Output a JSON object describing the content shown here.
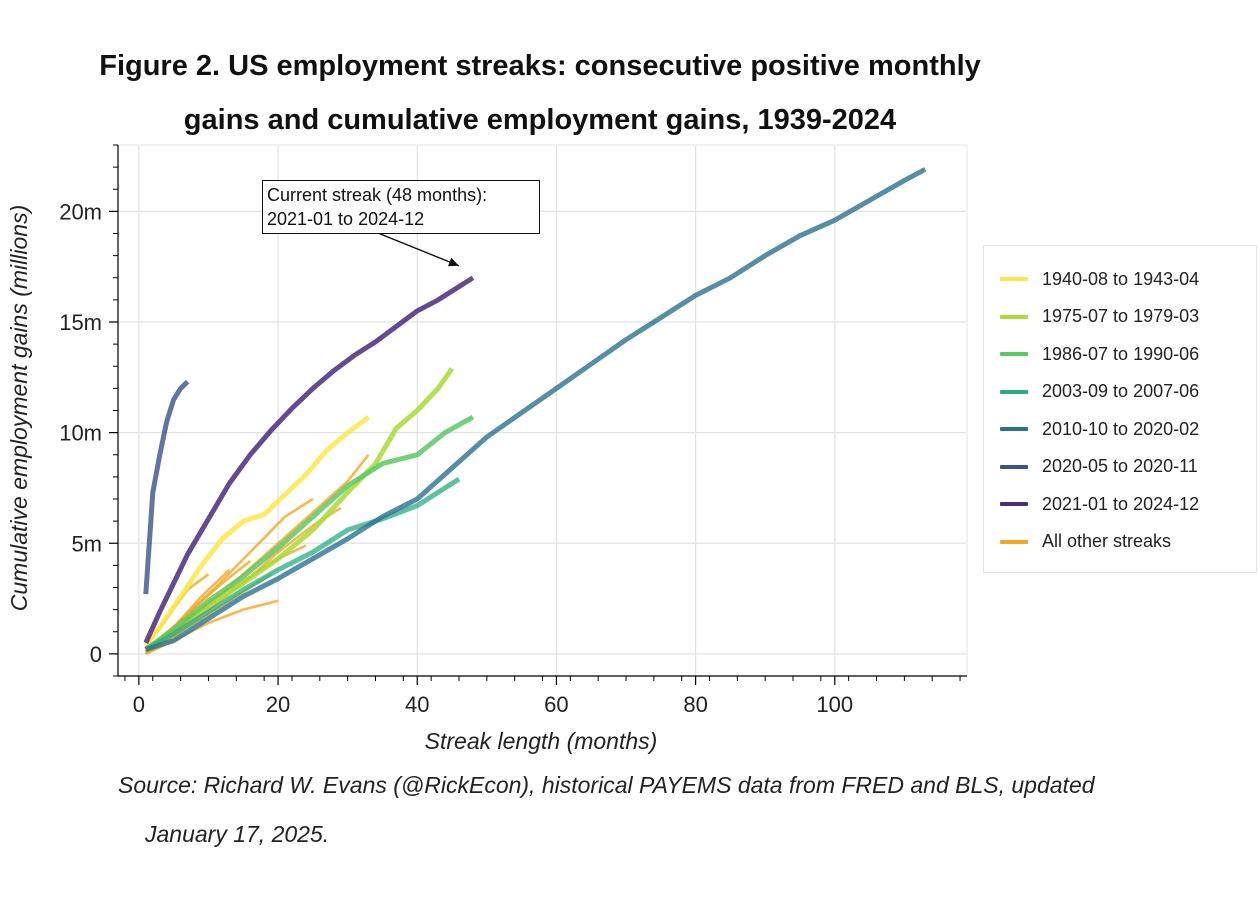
{
  "title_line1": "Figure 2. US employment streaks: consecutive positive monthly",
  "title_line2": "gains and cumulative employment gains, 1939-2024",
  "source_line1": "Source: Richard W. Evans (@RickEcon), historical PAYEMS data from FRED and BLS, updated",
  "source_line2": "January 17, 2025.",
  "annotation": {
    "line1": "Current streak (48 months):",
    "line2": "2021-01 to 2024-12"
  },
  "chart_data": {
    "type": "line",
    "title": "Figure 2. US employment streaks: consecutive positive monthly gains and cumulative employment gains, 1939-2024",
    "xlabel": "Streak length (months)",
    "ylabel": "Cumulative employment gains (millions)",
    "xlim": [
      -3,
      119
    ],
    "ylim": [
      -1,
      23
    ],
    "xticks": [
      0,
      20,
      40,
      60,
      80,
      100
    ],
    "xtick_labels": [
      "0",
      "20",
      "40",
      "60",
      "80",
      "100"
    ],
    "yticks": [
      0,
      5,
      10,
      15,
      20
    ],
    "ytick_labels": [
      "0",
      "5m",
      "10m",
      "15m",
      "20m"
    ],
    "grid": true,
    "legend_position": "right-outside",
    "series": [
      {
        "name": "1940-08 to 1943-04",
        "color": "#fde74c",
        "width": 5,
        "opacity": 0.85,
        "points": [
          [
            1,
            0.4
          ],
          [
            3,
            1.2
          ],
          [
            6,
            2.6
          ],
          [
            9,
            4.0
          ],
          [
            12,
            5.2
          ],
          [
            15,
            6.0
          ],
          [
            18,
            6.3
          ],
          [
            21,
            7.2
          ],
          [
            24,
            8.1
          ],
          [
            27,
            9.2
          ],
          [
            30,
            10.0
          ],
          [
            33,
            10.7
          ]
        ]
      },
      {
        "name": "1975-07 to 1979-03",
        "color": "#a8db34",
        "width": 5,
        "opacity": 0.85,
        "points": [
          [
            1,
            0.2
          ],
          [
            5,
            1.1
          ],
          [
            10,
            2.2
          ],
          [
            15,
            3.2
          ],
          [
            20,
            4.3
          ],
          [
            25,
            5.6
          ],
          [
            30,
            7.3
          ],
          [
            34,
            8.6
          ],
          [
            37,
            10.2
          ],
          [
            40,
            11.0
          ],
          [
            43,
            12.0
          ],
          [
            45,
            12.9
          ]
        ]
      },
      {
        "name": "1986-07 to 1990-06",
        "color": "#5cc863",
        "width": 5,
        "opacity": 0.85,
        "points": [
          [
            1,
            0.2
          ],
          [
            5,
            1.1
          ],
          [
            10,
            2.4
          ],
          [
            15,
            3.5
          ],
          [
            20,
            4.8
          ],
          [
            25,
            6.2
          ],
          [
            30,
            7.6
          ],
          [
            35,
            8.6
          ],
          [
            40,
            9.0
          ],
          [
            44,
            10.0
          ],
          [
            48,
            10.7
          ]
        ]
      },
      {
        "name": "2003-09 to 2007-06",
        "color": "#27ad81",
        "width": 5,
        "opacity": 0.75,
        "points": [
          [
            1,
            0.2
          ],
          [
            5,
            0.9
          ],
          [
            10,
            1.9
          ],
          [
            15,
            2.9
          ],
          [
            20,
            3.8
          ],
          [
            25,
            4.6
          ],
          [
            30,
            5.6
          ],
          [
            35,
            6.1
          ],
          [
            40,
            6.7
          ],
          [
            45,
            7.7
          ],
          [
            46,
            7.9
          ]
        ]
      },
      {
        "name": "2010-10 to 2020-02",
        "color": "#2c728e",
        "width": 5,
        "opacity": 0.8,
        "points": [
          [
            1,
            0.2
          ],
          [
            5,
            0.6
          ],
          [
            10,
            1.6
          ],
          [
            15,
            2.6
          ],
          [
            20,
            3.4
          ],
          [
            25,
            4.3
          ],
          [
            30,
            5.2
          ],
          [
            35,
            6.2
          ],
          [
            40,
            7.0
          ],
          [
            45,
            8.4
          ],
          [
            50,
            9.8
          ],
          [
            55,
            10.9
          ],
          [
            60,
            12.0
          ],
          [
            65,
            13.1
          ],
          [
            70,
            14.2
          ],
          [
            75,
            15.2
          ],
          [
            80,
            16.2
          ],
          [
            85,
            17.0
          ],
          [
            90,
            18.0
          ],
          [
            95,
            18.9
          ],
          [
            100,
            19.6
          ],
          [
            105,
            20.5
          ],
          [
            110,
            21.4
          ],
          [
            113,
            21.9
          ]
        ]
      },
      {
        "name": "2020-05 to 2020-11",
        "color": "#3b528b",
        "width": 5,
        "opacity": 0.8,
        "points": [
          [
            1,
            2.7
          ],
          [
            2,
            7.3
          ],
          [
            3,
            9.0
          ],
          [
            4,
            10.5
          ],
          [
            5,
            11.5
          ],
          [
            6,
            12.0
          ],
          [
            7,
            12.3
          ]
        ]
      },
      {
        "name": "2021-01 to 2024-12",
        "color": "#472d7b",
        "width": 5,
        "opacity": 0.85,
        "points": [
          [
            1,
            0.5
          ],
          [
            3,
            1.9
          ],
          [
            5,
            3.2
          ],
          [
            7,
            4.5
          ],
          [
            10,
            6.1
          ],
          [
            13,
            7.7
          ],
          [
            16,
            9.0
          ],
          [
            19,
            10.1
          ],
          [
            22,
            11.1
          ],
          [
            25,
            12.0
          ],
          [
            28,
            12.8
          ],
          [
            31,
            13.5
          ],
          [
            34,
            14.1
          ],
          [
            37,
            14.8
          ],
          [
            40,
            15.5
          ],
          [
            43,
            16.0
          ],
          [
            46,
            16.6
          ],
          [
            48,
            17.0
          ]
        ]
      },
      {
        "name": "All other streaks",
        "color": "#f5a623",
        "width": 2.6,
        "opacity": 0.8,
        "points": [
          [
            1,
            0.1
          ],
          [
            5,
            1.0
          ],
          [
            10,
            2.2
          ],
          [
            15,
            3.6
          ],
          [
            20,
            5.0
          ],
          [
            25,
            6.4
          ],
          [
            30,
            7.8
          ],
          [
            33,
            9.0
          ]
        ]
      },
      {
        "name": "",
        "color": "#f5a623",
        "width": 2.6,
        "opacity": 0.8,
        "points": [
          [
            1,
            0.2
          ],
          [
            6,
            1.5
          ],
          [
            11,
            3.0
          ],
          [
            16,
            4.6
          ],
          [
            21,
            6.2
          ],
          [
            25,
            7.0
          ]
        ]
      },
      {
        "name": "",
        "color": "#f5a623",
        "width": 2.6,
        "opacity": 0.8,
        "points": [
          [
            1,
            0.1
          ],
          [
            5,
            0.9
          ],
          [
            10,
            2.0
          ],
          [
            15,
            3.2
          ],
          [
            20,
            4.6
          ],
          [
            25,
            5.8
          ],
          [
            29,
            6.6
          ]
        ]
      },
      {
        "name": "",
        "color": "#f5a623",
        "width": 2.6,
        "opacity": 0.8,
        "points": [
          [
            1,
            0.0
          ],
          [
            4,
            0.9
          ],
          [
            8,
            2.1
          ],
          [
            12,
            3.2
          ],
          [
            16,
            4.2
          ]
        ]
      },
      {
        "name": "",
        "color": "#f5a623",
        "width": 2.6,
        "opacity": 0.8,
        "points": [
          [
            1,
            0.0
          ],
          [
            5,
            0.8
          ],
          [
            10,
            1.8
          ],
          [
            15,
            2.8
          ],
          [
            19,
            3.6
          ]
        ]
      },
      {
        "name": "",
        "color": "#f5a623",
        "width": 2.6,
        "opacity": 0.8,
        "points": [
          [
            1,
            0.0
          ],
          [
            5,
            0.6
          ],
          [
            10,
            1.4
          ],
          [
            15,
            2.0
          ],
          [
            20,
            2.4
          ]
        ]
      },
      {
        "name": "",
        "color": "#f5a623",
        "width": 2.6,
        "opacity": 0.8,
        "points": [
          [
            1,
            0.1
          ],
          [
            4,
            0.8
          ],
          [
            8,
            1.7
          ],
          [
            12,
            2.7
          ]
        ]
      },
      {
        "name": "",
        "color": "#f5a623",
        "width": 2.6,
        "opacity": 0.8,
        "points": [
          [
            1,
            0.1
          ],
          [
            5,
            1.2
          ],
          [
            9,
            2.6
          ],
          [
            13,
            3.8
          ]
        ]
      },
      {
        "name": "",
        "color": "#f5a623",
        "width": 2.6,
        "opacity": 0.8,
        "points": [
          [
            1,
            0.1
          ],
          [
            5,
            1.0
          ],
          [
            10,
            2.3
          ],
          [
            15,
            3.3
          ],
          [
            20,
            4.3
          ],
          [
            24,
            4.9
          ]
        ]
      },
      {
        "name": "",
        "color": "#f5a623",
        "width": 2.6,
        "opacity": 0.8,
        "points": [
          [
            1,
            0.3
          ],
          [
            4,
            1.6
          ],
          [
            7,
            2.9
          ],
          [
            10,
            3.6
          ]
        ]
      }
    ]
  },
  "legend": [
    {
      "label": "1940-08 to 1943-04",
      "color": "#fde74c"
    },
    {
      "label": "1975-07 to 1979-03",
      "color": "#a8db34"
    },
    {
      "label": "1986-07 to 1990-06",
      "color": "#5cc863"
    },
    {
      "label": "2003-09 to 2007-06",
      "color": "#27ad81"
    },
    {
      "label": "2010-10 to 2020-02",
      "color": "#2c728e"
    },
    {
      "label": "2020-05 to 2020-11",
      "color": "#3b528b"
    },
    {
      "label": "2021-01 to 2024-12",
      "color": "#472d7b"
    },
    {
      "label": "All other streaks",
      "color": "#f5a623"
    }
  ]
}
